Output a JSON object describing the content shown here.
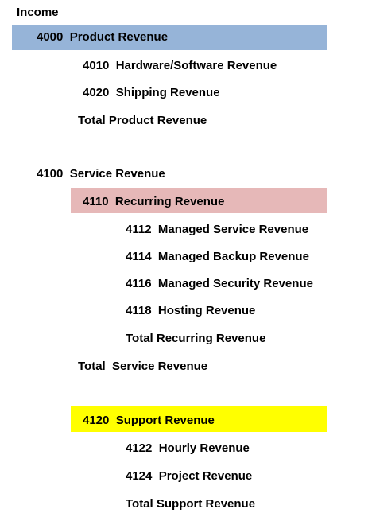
{
  "colors": {
    "product_highlight": "#96b4d8",
    "recurring_highlight": "#e6b8b8",
    "support_highlight": "#ffff00"
  },
  "heading": "Income",
  "product": {
    "header": "4000  Product Revenue",
    "items": [
      "4010  Hardware/Software Revenue",
      "4020  Shipping Revenue"
    ],
    "total": "Total Product Revenue"
  },
  "service": {
    "header": "4100  Service Revenue",
    "recurring": {
      "header": "4110  Recurring Revenue",
      "items": [
        "4112  Managed Service Revenue",
        "4114  Managed Backup Revenue",
        "4116  Managed Security Revenue",
        "4118  Hosting Revenue"
      ],
      "total": "Total Recurring Revenue"
    },
    "total": "Total  Service Revenue"
  },
  "support": {
    "header": "4120  Support Revenue",
    "items": [
      "4122  Hourly Revenue",
      "4124  Project Revenue"
    ],
    "total": "Total Support Revenue"
  }
}
